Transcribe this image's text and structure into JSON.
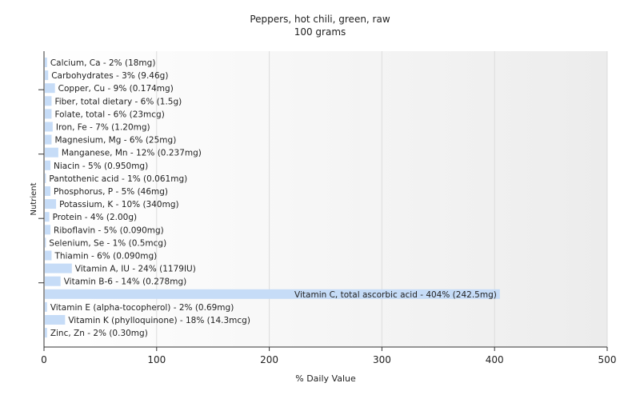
{
  "chart_data": {
    "type": "bar",
    "orientation": "horizontal",
    "title": "Peppers, hot chili, green, raw",
    "subtitle": "100 grams",
    "xlabel": "% Daily Value",
    "ylabel": "Nutrient",
    "xlim": [
      0,
      500
    ],
    "xticks": [
      0,
      100,
      200,
      300,
      400,
      500
    ],
    "grid": true,
    "bar_color": "#c6dcf7",
    "categories": [
      "Calcium, Ca",
      "Carbohydrates",
      "Copper, Cu",
      "Fiber, total dietary",
      "Folate, total",
      "Iron, Fe",
      "Magnesium, Mg",
      "Manganese, Mn",
      "Niacin",
      "Pantothenic acid",
      "Phosphorus, P",
      "Potassium, K",
      "Protein",
      "Riboflavin",
      "Selenium, Se",
      "Thiamin",
      "Vitamin A, IU",
      "Vitamin B-6",
      "Vitamin C, total ascorbic acid",
      "Vitamin E (alpha-tocopherol)",
      "Vitamin K (phylloquinone)",
      "Zinc, Zn"
    ],
    "values": [
      2,
      3,
      9,
      6,
      6,
      7,
      6,
      12,
      5,
      1,
      5,
      10,
      4,
      5,
      1,
      6,
      24,
      14,
      404,
      2,
      18,
      2
    ],
    "labels": [
      "Calcium, Ca - 2% (18mg)",
      "Carbohydrates - 3% (9.46g)",
      "Copper, Cu - 9% (0.174mg)",
      "Fiber, total dietary - 6% (1.5g)",
      "Folate, total - 6% (23mcg)",
      "Iron, Fe - 7% (1.20mg)",
      "Magnesium, Mg - 6% (25mg)",
      "Manganese, Mn - 12% (0.237mg)",
      "Niacin - 5% (0.950mg)",
      "Pantothenic acid - 1% (0.061mg)",
      "Phosphorus, P - 5% (46mg)",
      "Potassium, K - 10% (340mg)",
      "Protein - 4% (2.00g)",
      "Riboflavin - 5% (0.090mg)",
      "Selenium, Se - 1% (0.5mcg)",
      "Thiamin - 6% (0.090mg)",
      "Vitamin A, IU - 24% (1179IU)",
      "Vitamin B-6 - 14% (0.278mg)",
      "Vitamin C, total ascorbic acid - 404% (242.5mg)",
      "Vitamin E (alpha-tocopherol) - 2% (0.69mg)",
      "Vitamin K (phylloquinone) - 18% (14.3mcg)",
      "Zinc, Zn - 2% (0.30mg)"
    ]
  }
}
